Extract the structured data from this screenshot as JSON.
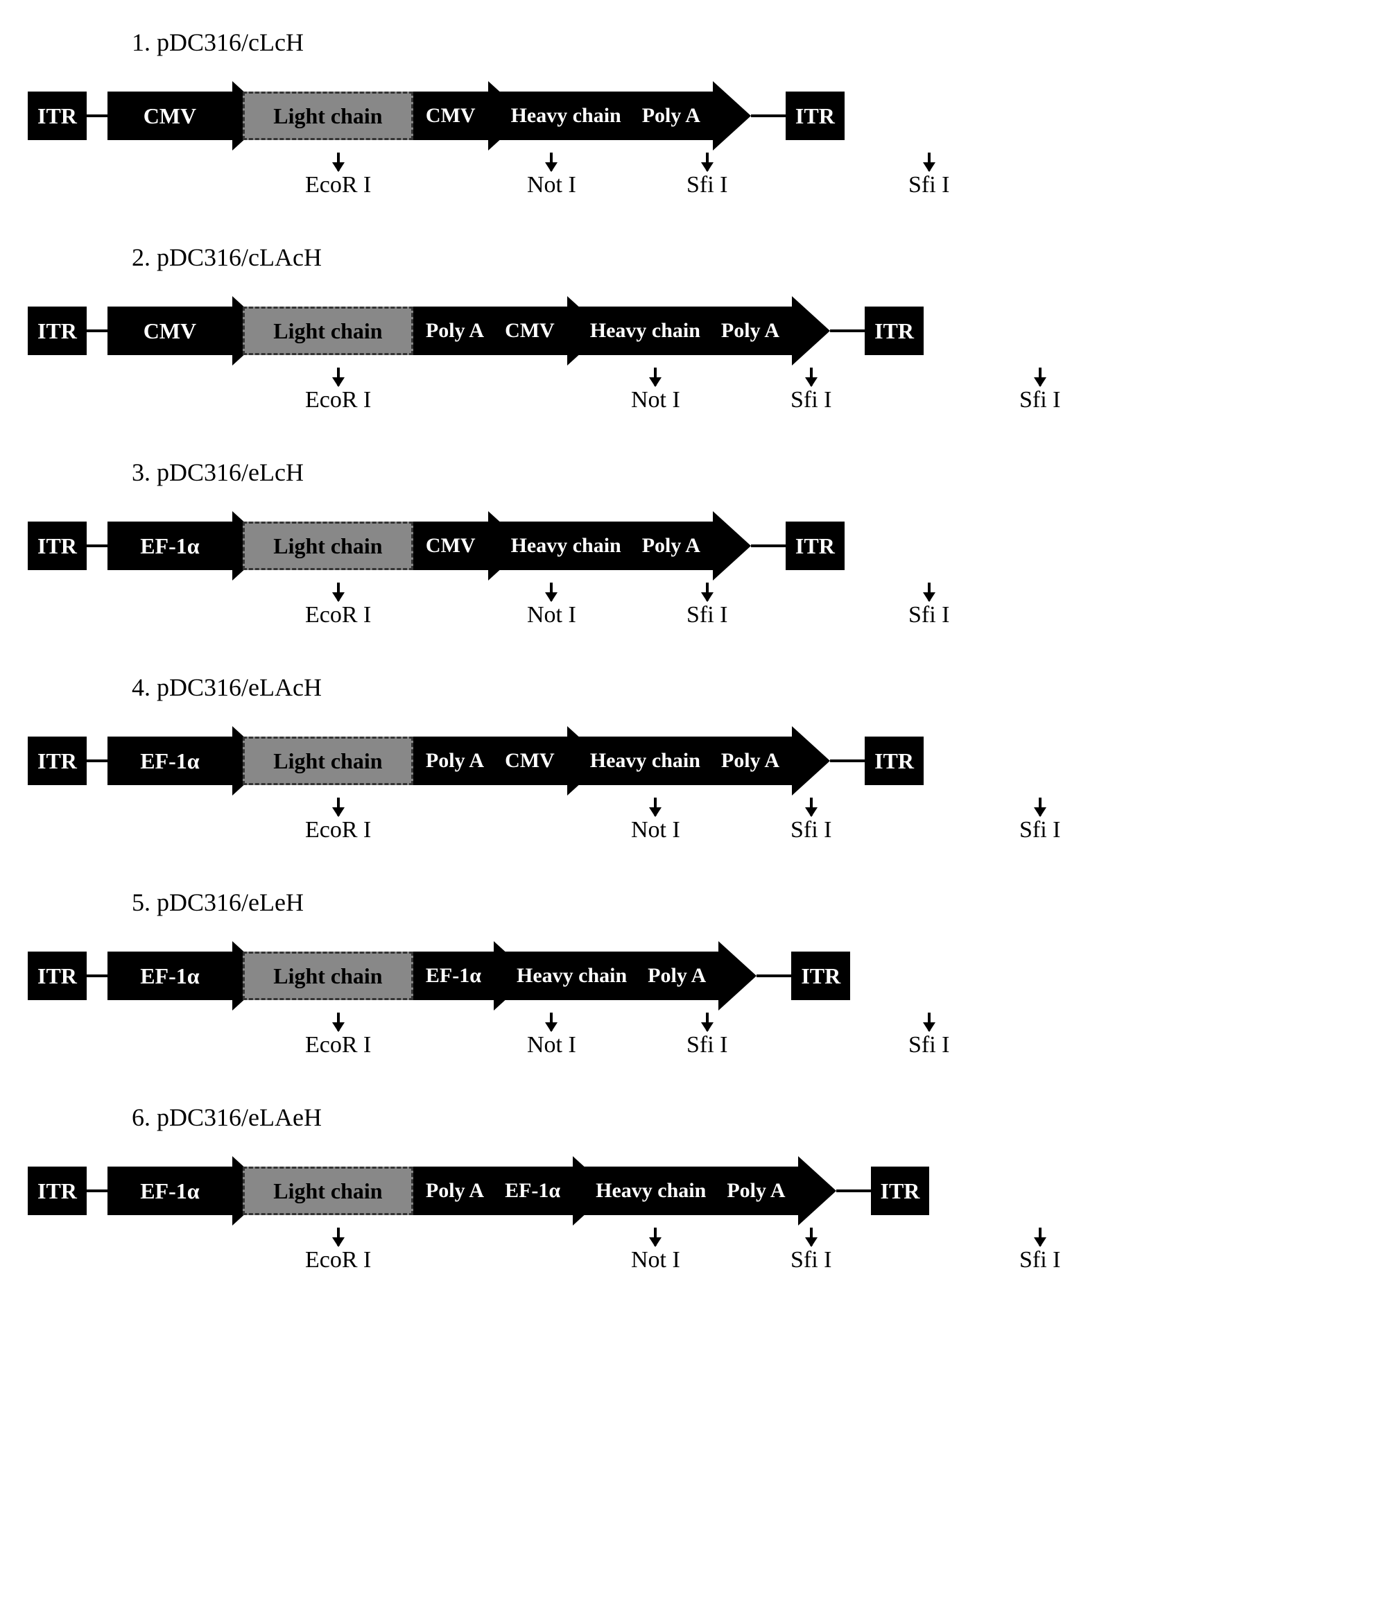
{
  "constructs": [
    {
      "title": "1. pDC316/cLcH",
      "layout": "short",
      "promoter1": "CMV",
      "segA": [
        "CMV"
      ],
      "segB": [
        "Heavy chain",
        "Poly A"
      ],
      "sites": {
        "ecor": 400,
        "not": 720,
        "sfi1": 950,
        "sfi2": 1270
      }
    },
    {
      "title": "2. pDC316/cLAcH",
      "layout": "long",
      "promoter1": "CMV",
      "segA": [
        "Poly A",
        "CMV"
      ],
      "segB": [
        "Heavy chain",
        "Poly A"
      ],
      "sites": {
        "ecor": 400,
        "not": 870,
        "sfi1": 1100,
        "sfi2": 1430
      }
    },
    {
      "title": "3. pDC316/eLcH",
      "layout": "short",
      "promoter1": "EF-1α",
      "segA": [
        "CMV"
      ],
      "segB": [
        "Heavy chain",
        "Poly A"
      ],
      "sites": {
        "ecor": 400,
        "not": 720,
        "sfi1": 950,
        "sfi2": 1270
      }
    },
    {
      "title": "4. pDC316/eLAcH",
      "layout": "long",
      "promoter1": "EF-1α",
      "segA": [
        "Poly A",
        "CMV"
      ],
      "segB": [
        "Heavy chain",
        "Poly A"
      ],
      "sites": {
        "ecor": 400,
        "not": 870,
        "sfi1": 1100,
        "sfi2": 1430
      }
    },
    {
      "title": "5. pDC316/eLeH",
      "layout": "short",
      "promoter1": "EF-1α",
      "segA": [
        "EF-1α"
      ],
      "segB": [
        "Heavy chain",
        "Poly A"
      ],
      "sites": {
        "ecor": 400,
        "not": 720,
        "sfi1": 950,
        "sfi2": 1270
      }
    },
    {
      "title": "6. pDC316/eLAeH",
      "layout": "long",
      "promoter1": "EF-1α",
      "segA": [
        "Poly A",
        "EF-1α"
      ],
      "segB": [
        "Heavy chain",
        "Poly A"
      ],
      "sites": {
        "ecor": 400,
        "not": 870,
        "sfi1": 1100,
        "sfi2": 1430
      }
    }
  ],
  "labels": {
    "itr": "ITR",
    "lightchain": "Light chain",
    "ecor": "EcoR I",
    "not": "Not I",
    "sfi": "Sfi I"
  },
  "colors": {
    "black": "#000000",
    "grey": "#888888",
    "white": "#ffffff"
  }
}
